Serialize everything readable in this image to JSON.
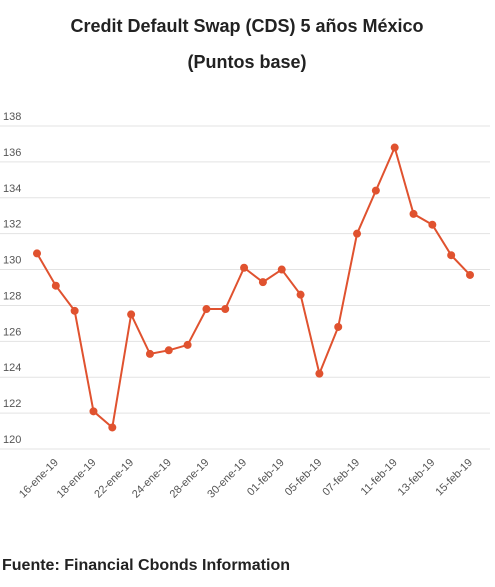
{
  "chart_data": {
    "type": "line",
    "title": "Credit Default Swap (CDS) 5 años México",
    "subtitle": "(Puntos base)",
    "source": "Fuente: Financial Cbonds Information",
    "categories": [
      null,
      "16-ene-19",
      null,
      "18-ene-19",
      null,
      "22-ene-19",
      null,
      "24-ene-19",
      null,
      "28-ene-19",
      null,
      "30-ene-19",
      null,
      "01-feb-19",
      null,
      "05-feb-19",
      null,
      "07-feb-19",
      null,
      "11-feb-19",
      null,
      "13-feb-19",
      null,
      "15-feb-19"
    ],
    "series": [
      {
        "name": "CDS 5 años",
        "color": "#e0522f",
        "values": [
          130.9,
          129.1,
          127.7,
          122.1,
          121.2,
          127.5,
          125.3,
          125.5,
          125.8,
          127.8,
          127.8,
          130.1,
          129.3,
          130.0,
          128.6,
          124.2,
          126.8,
          132.0,
          134.4,
          136.8,
          133.1,
          132.5,
          130.8,
          129.7
        ]
      }
    ],
    "ylim": [
      120,
      138
    ],
    "yticks": [
      120,
      122,
      124,
      126,
      128,
      130,
      132,
      134,
      136,
      138
    ],
    "grid": true
  }
}
